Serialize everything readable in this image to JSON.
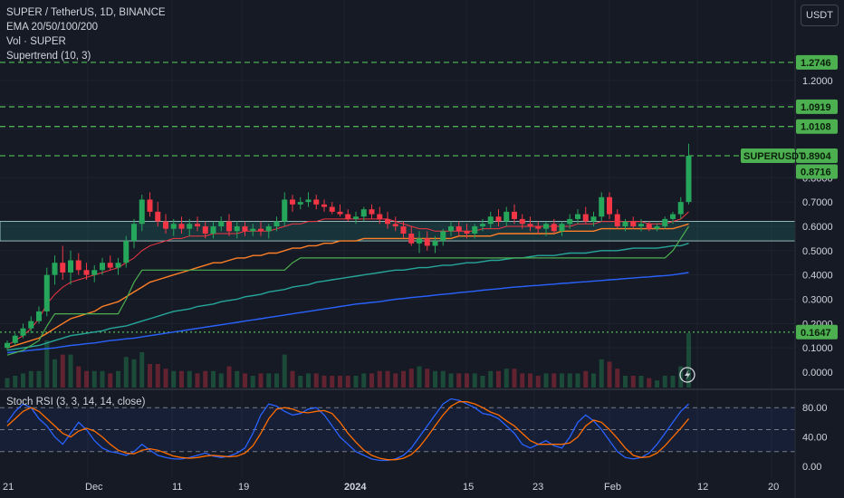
{
  "header": {
    "title": "SUPER / TetherUS, 1D, BINANCE",
    "indicator1": "EMA 20/50/100/200",
    "indicator2": "Vol · SUPER",
    "indicator3": "Supertrend (10, 3)",
    "currency": "USDT"
  },
  "rsi": {
    "label": "Stoch RSI (3, 3, 14, 14, close)"
  },
  "price_axis": {
    "ticks": [
      "1.2000",
      "1.1000",
      "0.9000",
      "0.8000",
      "0.7000",
      "0.6000",
      "0.5000",
      "0.4000",
      "0.3000",
      "0.2000",
      "0.1000",
      "0.0000"
    ]
  },
  "rsi_axis": {
    "ticks": [
      "80.00",
      "40.00",
      "0.00"
    ]
  },
  "time_axis": {
    "labels": [
      "21",
      "Dec",
      "11",
      "19",
      "2024",
      "15",
      "23",
      "Feb",
      "12",
      "20"
    ]
  },
  "tags": {
    "level1": "1.2746",
    "level2": "1.0919",
    "level3": "1.0108",
    "symbol": "SUPERUSDT",
    "price": "0.8904",
    "price2": "0.8716",
    "support": "0.1647"
  },
  "colors": {
    "background": "#161a25",
    "up": "#26a65b",
    "down": "#f23645",
    "level_line": "#4caf50",
    "ema20": "#f23645",
    "ema50": "#ff7f27",
    "ema100": "#26a69a",
    "ema200": "#2962ff",
    "supertrend": "#4caf50",
    "k_line": "#2962ff",
    "d_line": "#ff6d00"
  },
  "chart_data": {
    "type": "candlestick",
    "symbol": "SUPER / TetherUS",
    "interval": "1D",
    "exchange": "BINANCE",
    "price_range": [
      0,
      1.4
    ],
    "levels": [
      1.2746,
      1.0919,
      1.0108,
      0.8904,
      0.1647
    ],
    "zone": [
      0.54,
      0.62
    ],
    "candles": [
      [
        0.1,
        0.13,
        0.09,
        0.12
      ],
      [
        0.12,
        0.16,
        0.11,
        0.15
      ],
      [
        0.15,
        0.2,
        0.14,
        0.18
      ],
      [
        0.18,
        0.23,
        0.16,
        0.21
      ],
      [
        0.21,
        0.27,
        0.2,
        0.25
      ],
      [
        0.25,
        0.43,
        0.23,
        0.4
      ],
      [
        0.4,
        0.48,
        0.36,
        0.45
      ],
      [
        0.45,
        0.52,
        0.38,
        0.41
      ],
      [
        0.41,
        0.5,
        0.36,
        0.46
      ],
      [
        0.46,
        0.49,
        0.4,
        0.42
      ],
      [
        0.42,
        0.45,
        0.38,
        0.4
      ],
      [
        0.4,
        0.44,
        0.37,
        0.42
      ],
      [
        0.42,
        0.47,
        0.4,
        0.45
      ],
      [
        0.45,
        0.48,
        0.42,
        0.43
      ],
      [
        0.43,
        0.47,
        0.4,
        0.45
      ],
      [
        0.45,
        0.56,
        0.43,
        0.54
      ],
      [
        0.54,
        0.63,
        0.51,
        0.61
      ],
      [
        0.61,
        0.73,
        0.58,
        0.71
      ],
      [
        0.71,
        0.74,
        0.64,
        0.66
      ],
      [
        0.66,
        0.7,
        0.6,
        0.62
      ],
      [
        0.62,
        0.65,
        0.57,
        0.59
      ],
      [
        0.59,
        0.63,
        0.56,
        0.61
      ],
      [
        0.61,
        0.64,
        0.57,
        0.59
      ],
      [
        0.59,
        0.63,
        0.56,
        0.61
      ],
      [
        0.61,
        0.64,
        0.58,
        0.6
      ],
      [
        0.6,
        0.62,
        0.55,
        0.57
      ],
      [
        0.57,
        0.62,
        0.55,
        0.6
      ],
      [
        0.6,
        0.64,
        0.58,
        0.62
      ],
      [
        0.62,
        0.65,
        0.56,
        0.58
      ],
      [
        0.58,
        0.62,
        0.55,
        0.6
      ],
      [
        0.6,
        0.62,
        0.56,
        0.58
      ],
      [
        0.58,
        0.61,
        0.56,
        0.59
      ],
      [
        0.59,
        0.62,
        0.56,
        0.58
      ],
      [
        0.58,
        0.61,
        0.55,
        0.6
      ],
      [
        0.6,
        0.64,
        0.58,
        0.62
      ],
      [
        0.62,
        0.74,
        0.6,
        0.71
      ],
      [
        0.71,
        0.73,
        0.66,
        0.69
      ],
      [
        0.69,
        0.72,
        0.67,
        0.7
      ],
      [
        0.7,
        0.74,
        0.68,
        0.71
      ],
      [
        0.71,
        0.73,
        0.67,
        0.69
      ],
      [
        0.69,
        0.71,
        0.66,
        0.68
      ],
      [
        0.68,
        0.7,
        0.65,
        0.66
      ],
      [
        0.66,
        0.69,
        0.64,
        0.65
      ],
      [
        0.65,
        0.67,
        0.62,
        0.63
      ],
      [
        0.63,
        0.66,
        0.61,
        0.64
      ],
      [
        0.64,
        0.68,
        0.62,
        0.67
      ],
      [
        0.67,
        0.69,
        0.63,
        0.65
      ],
      [
        0.65,
        0.68,
        0.61,
        0.63
      ],
      [
        0.63,
        0.66,
        0.59,
        0.61
      ],
      [
        0.61,
        0.64,
        0.58,
        0.6
      ],
      [
        0.6,
        0.62,
        0.55,
        0.57
      ],
      [
        0.57,
        0.6,
        0.52,
        0.53
      ],
      [
        0.53,
        0.58,
        0.49,
        0.55
      ],
      [
        0.55,
        0.58,
        0.5,
        0.52
      ],
      [
        0.52,
        0.56,
        0.49,
        0.54
      ],
      [
        0.54,
        0.59,
        0.52,
        0.58
      ],
      [
        0.58,
        0.62,
        0.56,
        0.6
      ],
      [
        0.6,
        0.62,
        0.56,
        0.58
      ],
      [
        0.58,
        0.61,
        0.55,
        0.57
      ],
      [
        0.57,
        0.61,
        0.55,
        0.6
      ],
      [
        0.6,
        0.63,
        0.58,
        0.61
      ],
      [
        0.61,
        0.66,
        0.59,
        0.64
      ],
      [
        0.64,
        0.67,
        0.6,
        0.62
      ],
      [
        0.62,
        0.68,
        0.6,
        0.66
      ],
      [
        0.66,
        0.69,
        0.61,
        0.63
      ],
      [
        0.63,
        0.65,
        0.59,
        0.61
      ],
      [
        0.61,
        0.64,
        0.58,
        0.6
      ],
      [
        0.6,
        0.62,
        0.57,
        0.59
      ],
      [
        0.59,
        0.62,
        0.56,
        0.61
      ],
      [
        0.61,
        0.63,
        0.57,
        0.58
      ],
      [
        0.58,
        0.62,
        0.56,
        0.61
      ],
      [
        0.61,
        0.65,
        0.59,
        0.63
      ],
      [
        0.63,
        0.67,
        0.61,
        0.65
      ],
      [
        0.65,
        0.68,
        0.61,
        0.62
      ],
      [
        0.62,
        0.66,
        0.6,
        0.64
      ],
      [
        0.64,
        0.74,
        0.62,
        0.72
      ],
      [
        0.72,
        0.74,
        0.63,
        0.65
      ],
      [
        0.65,
        0.67,
        0.59,
        0.6
      ],
      [
        0.6,
        0.63,
        0.58,
        0.62
      ],
      [
        0.62,
        0.64,
        0.59,
        0.6
      ],
      [
        0.6,
        0.63,
        0.58,
        0.61
      ],
      [
        0.61,
        0.62,
        0.58,
        0.59
      ],
      [
        0.59,
        0.61,
        0.58,
        0.6
      ],
      [
        0.6,
        0.64,
        0.59,
        0.63
      ],
      [
        0.63,
        0.66,
        0.61,
        0.65
      ],
      [
        0.65,
        0.72,
        0.63,
        0.7
      ],
      [
        0.7,
        0.94,
        0.69,
        0.89
      ]
    ],
    "ema20": [
      0.11,
      0.13,
      0.15,
      0.18,
      0.22,
      0.28,
      0.32,
      0.35,
      0.37,
      0.38,
      0.39,
      0.4,
      0.41,
      0.42,
      0.43,
      0.45,
      0.47,
      0.5,
      0.52,
      0.53,
      0.54,
      0.55,
      0.55,
      0.56,
      0.56,
      0.56,
      0.57,
      0.57,
      0.57,
      0.57,
      0.58,
      0.58,
      0.58,
      0.58,
      0.59,
      0.6,
      0.61,
      0.61,
      0.62,
      0.62,
      0.63,
      0.63,
      0.63,
      0.63,
      0.63,
      0.63,
      0.63,
      0.63,
      0.63,
      0.62,
      0.61,
      0.6,
      0.59,
      0.59,
      0.58,
      0.58,
      0.58,
      0.58,
      0.58,
      0.58,
      0.59,
      0.59,
      0.59,
      0.6,
      0.6,
      0.6,
      0.6,
      0.6,
      0.6,
      0.6,
      0.6,
      0.6,
      0.61,
      0.61,
      0.61,
      0.62,
      0.62,
      0.62,
      0.62,
      0.62,
      0.62,
      0.61,
      0.61,
      0.61,
      0.62,
      0.63,
      0.66
    ],
    "ema50": [
      0.1,
      0.11,
      0.12,
      0.13,
      0.14,
      0.16,
      0.18,
      0.2,
      0.22,
      0.23,
      0.24,
      0.25,
      0.27,
      0.28,
      0.29,
      0.31,
      0.33,
      0.35,
      0.37,
      0.38,
      0.39,
      0.4,
      0.41,
      0.42,
      0.43,
      0.44,
      0.45,
      0.45,
      0.46,
      0.47,
      0.47,
      0.48,
      0.48,
      0.49,
      0.49,
      0.5,
      0.51,
      0.51,
      0.52,
      0.52,
      0.53,
      0.53,
      0.54,
      0.54,
      0.54,
      0.55,
      0.55,
      0.55,
      0.55,
      0.55,
      0.55,
      0.55,
      0.55,
      0.55,
      0.55,
      0.55,
      0.55,
      0.56,
      0.56,
      0.56,
      0.56,
      0.56,
      0.57,
      0.57,
      0.57,
      0.57,
      0.57,
      0.57,
      0.57,
      0.57,
      0.58,
      0.58,
      0.58,
      0.58,
      0.58,
      0.59,
      0.59,
      0.59,
      0.59,
      0.59,
      0.59,
      0.59,
      0.59,
      0.59,
      0.59,
      0.6,
      0.61
    ],
    "ema100": [
      0.09,
      0.095,
      0.1,
      0.105,
      0.11,
      0.12,
      0.13,
      0.14,
      0.15,
      0.155,
      0.16,
      0.165,
      0.17,
      0.18,
      0.185,
      0.19,
      0.2,
      0.21,
      0.22,
      0.23,
      0.24,
      0.25,
      0.255,
      0.26,
      0.27,
      0.275,
      0.28,
      0.29,
      0.295,
      0.3,
      0.31,
      0.315,
      0.32,
      0.33,
      0.335,
      0.34,
      0.35,
      0.355,
      0.36,
      0.37,
      0.375,
      0.38,
      0.385,
      0.39,
      0.395,
      0.4,
      0.405,
      0.41,
      0.415,
      0.42,
      0.42,
      0.425,
      0.43,
      0.43,
      0.435,
      0.44,
      0.44,
      0.445,
      0.45,
      0.45,
      0.455,
      0.46,
      0.46,
      0.465,
      0.47,
      0.47,
      0.475,
      0.48,
      0.48,
      0.48,
      0.485,
      0.49,
      0.49,
      0.49,
      0.495,
      0.5,
      0.5,
      0.5,
      0.505,
      0.51,
      0.51,
      0.51,
      0.51,
      0.515,
      0.52,
      0.52,
      0.53
    ],
    "ema200": [
      0.08,
      0.083,
      0.086,
      0.09,
      0.093,
      0.097,
      0.1,
      0.105,
      0.11,
      0.113,
      0.117,
      0.12,
      0.125,
      0.13,
      0.133,
      0.137,
      0.14,
      0.145,
      0.15,
      0.155,
      0.16,
      0.165,
      0.17,
      0.175,
      0.18,
      0.185,
      0.19,
      0.195,
      0.2,
      0.205,
      0.21,
      0.215,
      0.22,
      0.225,
      0.23,
      0.235,
      0.24,
      0.245,
      0.25,
      0.255,
      0.26,
      0.265,
      0.27,
      0.275,
      0.28,
      0.283,
      0.287,
      0.29,
      0.295,
      0.3,
      0.303,
      0.307,
      0.31,
      0.313,
      0.317,
      0.32,
      0.323,
      0.327,
      0.33,
      0.333,
      0.337,
      0.34,
      0.343,
      0.347,
      0.35,
      0.352,
      0.355,
      0.357,
      0.36,
      0.362,
      0.365,
      0.367,
      0.37,
      0.372,
      0.375,
      0.377,
      0.38,
      0.382,
      0.385,
      0.387,
      0.39,
      0.392,
      0.395,
      0.397,
      0.4,
      0.405,
      0.41
    ],
    "supertrend": [
      0.07,
      0.08,
      0.09,
      0.11,
      0.13,
      0.19,
      0.24,
      0.24,
      0.24,
      0.24,
      0.24,
      0.24,
      0.24,
      0.24,
      0.24,
      0.3,
      0.37,
      0.42,
      0.42,
      0.42,
      0.42,
      0.42,
      0.42,
      0.42,
      0.42,
      0.42,
      0.42,
      0.42,
      0.42,
      0.42,
      0.42,
      0.42,
      0.42,
      0.42,
      0.42,
      0.42,
      0.45,
      0.47,
      0.47,
      0.47,
      0.47,
      0.47,
      0.47,
      0.47,
      0.47,
      0.47,
      0.47,
      0.47,
      0.47,
      0.47,
      0.47,
      0.47,
      0.47,
      0.47,
      0.47,
      0.47,
      0.47,
      0.47,
      0.47,
      0.47,
      0.47,
      0.47,
      0.47,
      0.47,
      0.47,
      0.47,
      0.47,
      0.47,
      0.47,
      0.47,
      0.47,
      0.47,
      0.47,
      0.47,
      0.47,
      0.47,
      0.47,
      0.47,
      0.47,
      0.47,
      0.47,
      0.47,
      0.47,
      0.47,
      0.5,
      0.55,
      0.6
    ],
    "stoch_k": [
      60,
      75,
      85,
      80,
      65,
      55,
      40,
      30,
      45,
      60,
      50,
      35,
      25,
      20,
      18,
      15,
      20,
      30,
      22,
      15,
      12,
      10,
      10,
      12,
      15,
      18,
      14,
      12,
      14,
      18,
      25,
      45,
      70,
      85,
      82,
      75,
      70,
      72,
      78,
      80,
      70,
      55,
      40,
      30,
      20,
      15,
      10,
      8,
      8,
      10,
      15,
      25,
      40,
      55,
      70,
      85,
      92,
      90,
      85,
      80,
      72,
      70,
      65,
      55,
      45,
      30,
      25,
      30,
      35,
      28,
      25,
      40,
      60,
      70,
      62,
      50,
      35,
      20,
      12,
      10,
      12,
      18,
      30,
      45,
      60,
      75,
      85
    ],
    "stoch_d": [
      55,
      65,
      75,
      80,
      75,
      65,
      55,
      45,
      40,
      48,
      52,
      48,
      40,
      30,
      22,
      18,
      17,
      22,
      24,
      22,
      18,
      14,
      12,
      11,
      12,
      14,
      15,
      14,
      13,
      14,
      18,
      28,
      45,
      65,
      78,
      80,
      78,
      74,
      73,
      75,
      76,
      72,
      60,
      45,
      33,
      22,
      15,
      11,
      9,
      9,
      11,
      16,
      26,
      40,
      55,
      70,
      82,
      88,
      88,
      85,
      80,
      74,
      70,
      62,
      55,
      45,
      35,
      30,
      30,
      30,
      30,
      32,
      40,
      55,
      63,
      60,
      50,
      38,
      25,
      15,
      12,
      13,
      18,
      28,
      40,
      52,
      65
    ]
  }
}
